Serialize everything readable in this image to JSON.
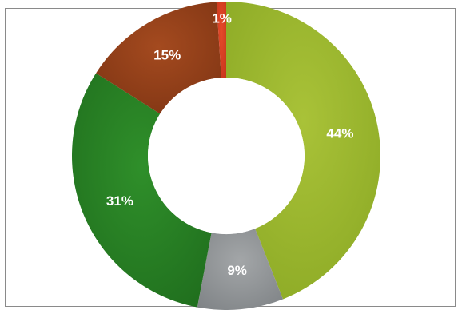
{
  "chart_data": {
    "type": "donut",
    "start_angle_deg": 0,
    "direction": "clockwise",
    "slices": [
      {
        "label": "44%",
        "value": 44,
        "color": "#a9c238",
        "color_dark": "#8aa824"
      },
      {
        "label": "9%",
        "value": 9,
        "color": "#a3a6a8",
        "color_dark": "#7f8386"
      },
      {
        "label": "31%",
        "value": 31,
        "color": "#2f8f2a",
        "color_dark": "#1f6d1d"
      },
      {
        "label": "15%",
        "value": 15,
        "color": "#a44a1f",
        "color_dark": "#7e3413"
      },
      {
        "label": "1%",
        "value": 1,
        "color": "#e64a2a",
        "color_dark": "#c6361c"
      }
    ]
  }
}
